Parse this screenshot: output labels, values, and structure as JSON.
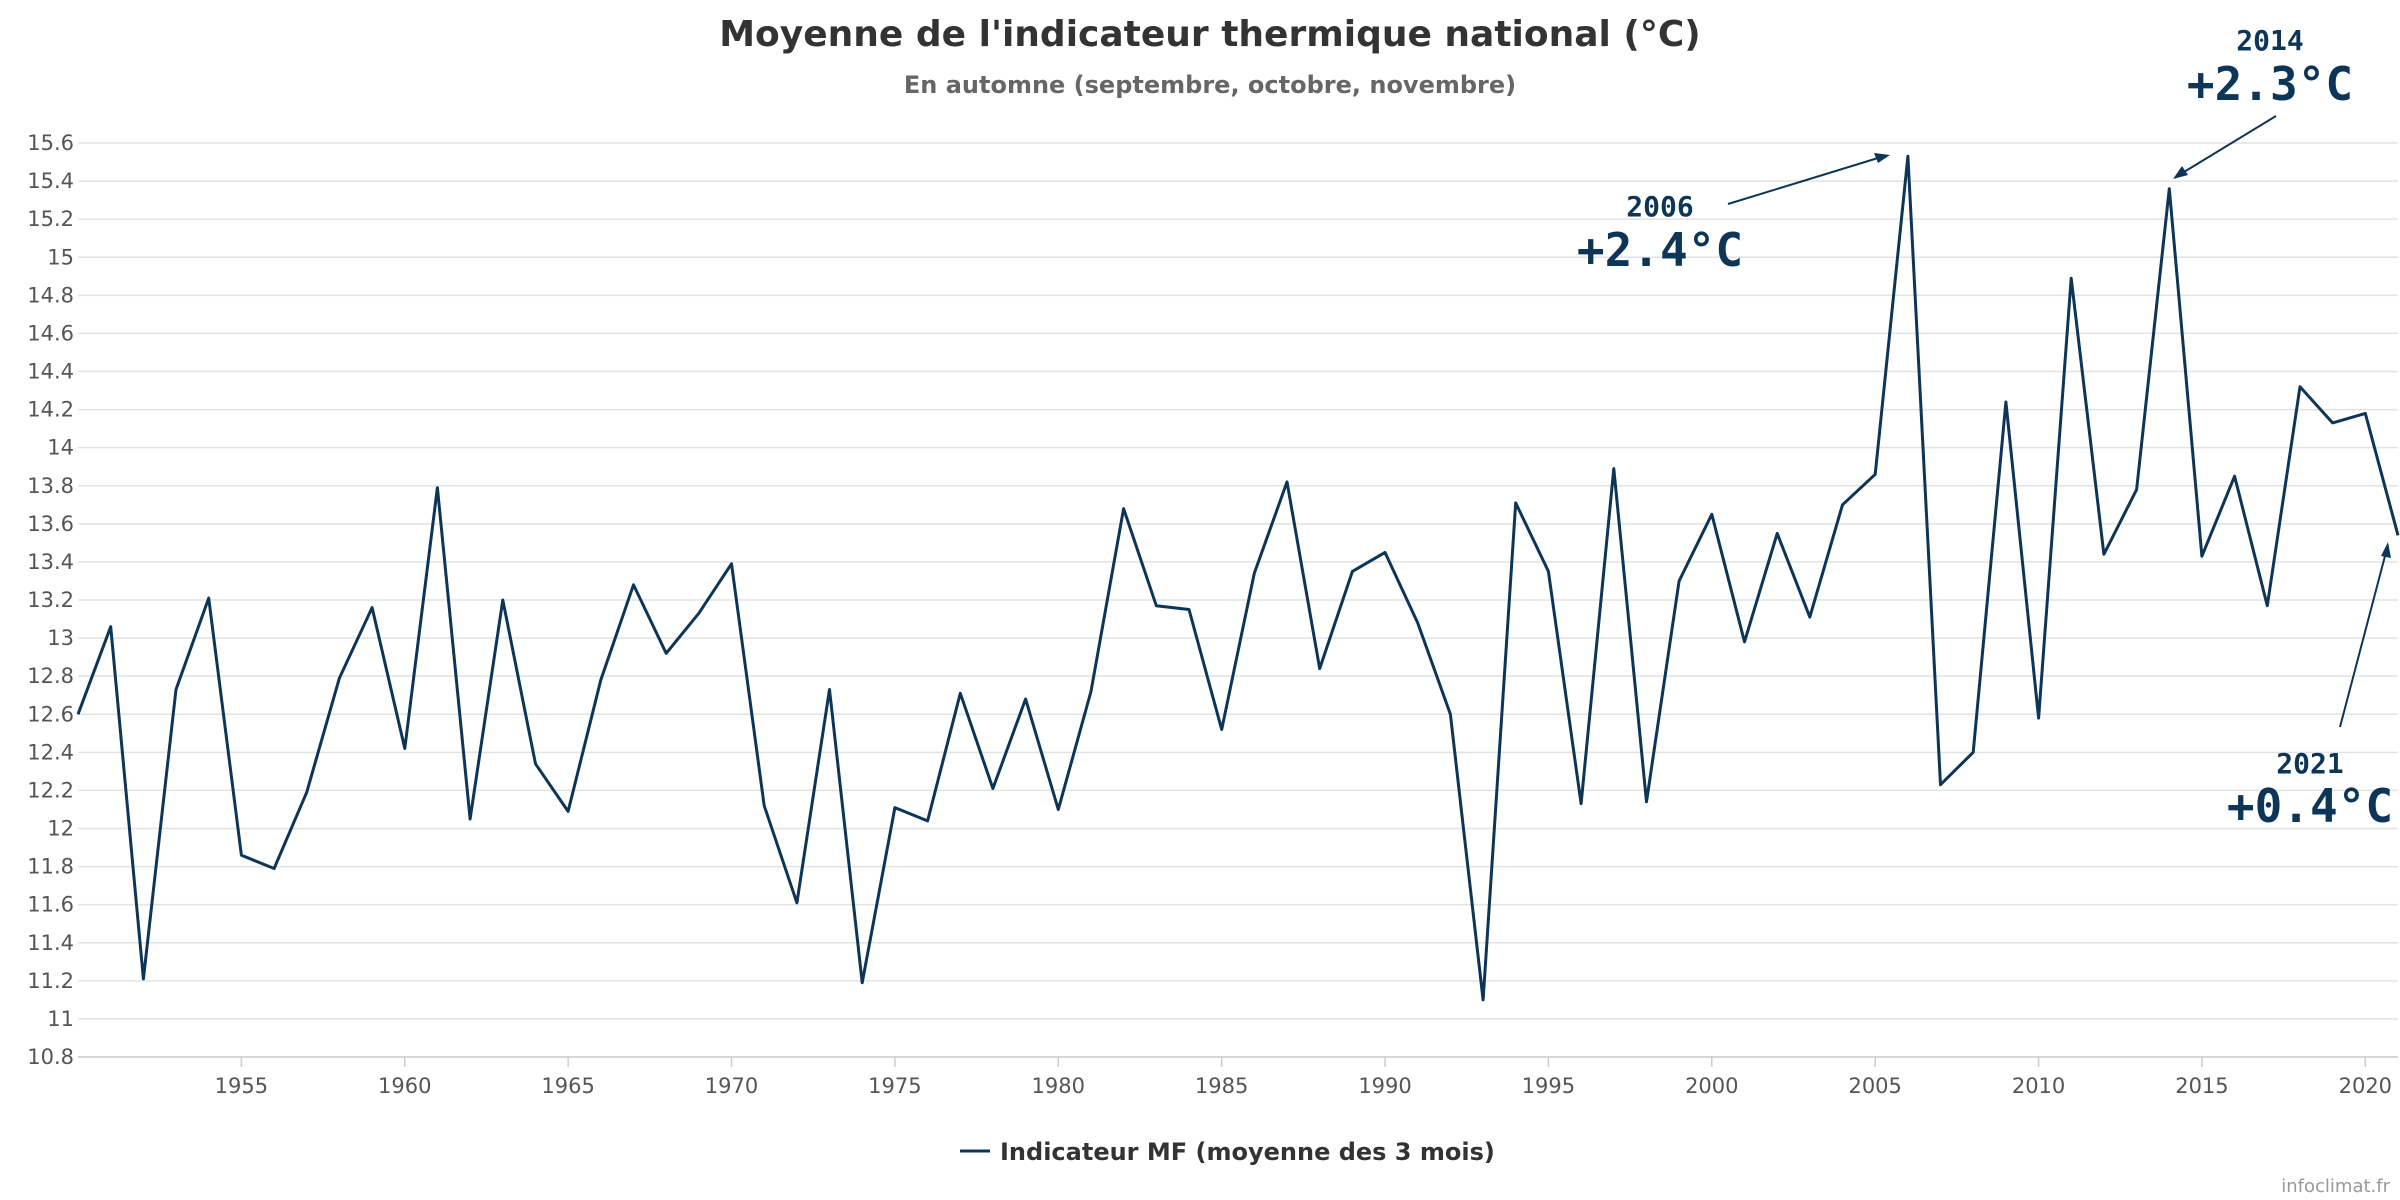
{
  "chart_data": {
    "type": "line",
    "title": "Moyenne de l'indicateur thermique national (°C)",
    "subtitle": "En automne (septembre, octobre, novembre)",
    "xlabel": "",
    "ylabel": "",
    "ylim": [
      10.8,
      15.6
    ],
    "xlim": [
      1950,
      2021
    ],
    "yticks": [
      "10.8",
      "11",
      "11.2",
      "11.4",
      "11.6",
      "11.8",
      "12",
      "12.2",
      "12.4",
      "12.6",
      "12.8",
      "13",
      "13.2",
      "13.4",
      "13.6",
      "13.8",
      "14",
      "14.2",
      "14.4",
      "14.6",
      "14.8",
      "15",
      "15.2",
      "15.4",
      "15.6"
    ],
    "xticks": [
      "1955",
      "1960",
      "1965",
      "1970",
      "1975",
      "1980",
      "1985",
      "1990",
      "1995",
      "2000",
      "2005",
      "2010",
      "2015",
      "2020"
    ],
    "grid": true,
    "legend_position": "bottom-center",
    "series": [
      {
        "name": "Indicateur MF (moyenne des 3 mois)",
        "color": "#0d3557",
        "x": [
          1950,
          1951,
          1952,
          1953,
          1954,
          1955,
          1956,
          1957,
          1958,
          1959,
          1960,
          1961,
          1962,
          1963,
          1964,
          1965,
          1966,
          1967,
          1968,
          1969,
          1970,
          1971,
          1972,
          1973,
          1974,
          1975,
          1976,
          1977,
          1978,
          1979,
          1980,
          1981,
          1982,
          1983,
          1984,
          1985,
          1986,
          1987,
          1988,
          1989,
          1990,
          1991,
          1992,
          1993,
          1994,
          1995,
          1996,
          1997,
          1998,
          1999,
          2000,
          2001,
          2002,
          2003,
          2004,
          2005,
          2006,
          2007,
          2008,
          2009,
          2010,
          2011,
          2012,
          2013,
          2014,
          2015,
          2016,
          2017,
          2018,
          2019,
          2020,
          2021
        ],
        "values": [
          12.6,
          13.06,
          11.21,
          12.73,
          13.21,
          11.86,
          11.79,
          12.19,
          12.79,
          13.16,
          12.42,
          13.79,
          12.05,
          13.2,
          12.34,
          12.09,
          12.78,
          13.28,
          12.92,
          13.13,
          13.39,
          12.12,
          11.61,
          12.73,
          11.19,
          12.11,
          12.04,
          12.71,
          12.21,
          12.68,
          12.1,
          12.72,
          13.68,
          13.17,
          13.15,
          12.52,
          13.34,
          13.82,
          12.84,
          13.35,
          13.45,
          13.08,
          12.6,
          11.1,
          13.71,
          13.35,
          12.13,
          13.89,
          12.14,
          13.3,
          13.65,
          12.98,
          13.55,
          13.11,
          13.7,
          13.86,
          15.53,
          12.23,
          12.4,
          14.24,
          12.58,
          14.89,
          13.44,
          13.78,
          15.36,
          13.43,
          13.85,
          13.17,
          14.32,
          14.13,
          14.18,
          13.54
        ]
      }
    ],
    "annotations": [
      {
        "year": "2006",
        "value": "+2.4°C"
      },
      {
        "year": "2014",
        "value": "+2.3°C"
      },
      {
        "year": "2021",
        "value": "+0.4°C"
      }
    ]
  },
  "credit": "infoclimat.fr"
}
